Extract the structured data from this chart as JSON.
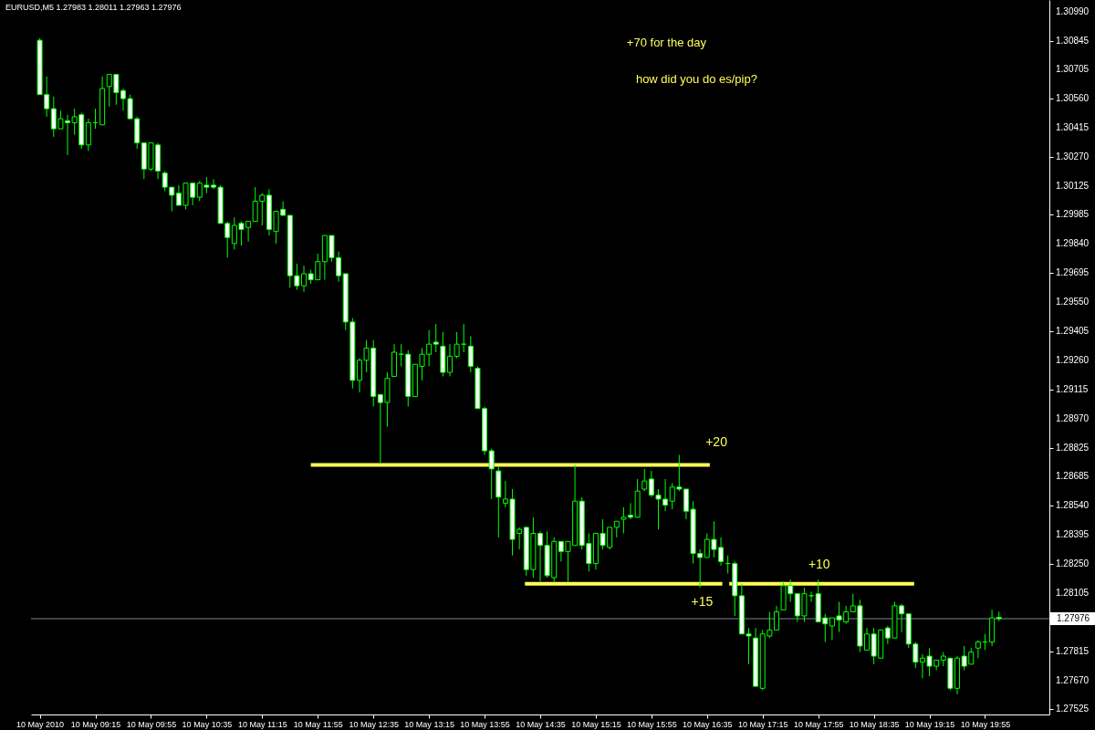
{
  "chart_data": {
    "type": "candlestick",
    "title": "EURUSD,M5  1.27983 1.28011 1.27963 1.27976",
    "color": "#00ff00",
    "x": [
      "2010-05-10T08:35",
      "2010-05-10T08:40",
      "2010-05-10T08:45",
      "2010-05-10T08:50",
      "2010-05-10T08:55",
      "2010-05-10T09:00",
      "2010-05-10T09:05",
      "2010-05-10T09:10",
      "2010-05-10T09:15",
      "2010-05-10T09:20",
      "2010-05-10T09:25",
      "2010-05-10T09:30",
      "2010-05-10T09:35",
      "2010-05-10T09:40",
      "2010-05-10T09:45",
      "2010-05-10T09:50",
      "2010-05-10T09:55",
      "2010-05-10T10:00",
      "2010-05-10T10:05",
      "2010-05-10T10:10",
      "2010-05-10T10:15",
      "2010-05-10T10:20",
      "2010-05-10T10:25",
      "2010-05-10T10:30",
      "2010-05-10T10:35",
      "2010-05-10T10:40",
      "2010-05-10T10:45",
      "2010-05-10T10:50",
      "2010-05-10T10:55",
      "2010-05-10T11:00",
      "2010-05-10T11:05",
      "2010-05-10T11:10",
      "2010-05-10T11:15",
      "2010-05-10T11:20",
      "2010-05-10T11:25",
      "2010-05-10T11:30",
      "2010-05-10T11:35",
      "2010-05-10T11:40",
      "2010-05-10T11:45",
      "2010-05-10T11:50",
      "2010-05-10T11:55",
      "2010-05-10T12:00",
      "2010-05-10T12:05",
      "2010-05-10T12:10",
      "2010-05-10T12:15",
      "2010-05-10T12:20",
      "2010-05-10T12:25",
      "2010-05-10T12:30",
      "2010-05-10T12:35",
      "2010-05-10T12:40",
      "2010-05-10T12:45",
      "2010-05-10T12:50",
      "2010-05-10T12:55",
      "2010-05-10T13:00",
      "2010-05-10T13:05",
      "2010-05-10T13:10",
      "2010-05-10T13:15",
      "2010-05-10T13:20",
      "2010-05-10T13:25",
      "2010-05-10T13:30",
      "2010-05-10T13:35",
      "2010-05-10T13:40",
      "2010-05-10T13:45",
      "2010-05-10T13:50",
      "2010-05-10T13:55",
      "2010-05-10T14:00",
      "2010-05-10T14:05",
      "2010-05-10T14:10",
      "2010-05-10T14:15",
      "2010-05-10T14:20",
      "2010-05-10T14:25",
      "2010-05-10T14:30",
      "2010-05-10T14:35",
      "2010-05-10T14:40",
      "2010-05-10T14:45",
      "2010-05-10T14:50",
      "2010-05-10T14:55",
      "2010-05-10T15:00",
      "2010-05-10T15:05",
      "2010-05-10T15:10",
      "2010-05-10T15:15",
      "2010-05-10T15:20",
      "2010-05-10T15:25",
      "2010-05-10T15:30",
      "2010-05-10T15:35",
      "2010-05-10T15:40",
      "2010-05-10T15:45",
      "2010-05-10T15:50",
      "2010-05-10T15:55",
      "2010-05-10T16:00",
      "2010-05-10T16:05",
      "2010-05-10T16:10",
      "2010-05-10T16:15",
      "2010-05-10T16:20",
      "2010-05-10T16:25",
      "2010-05-10T16:30",
      "2010-05-10T16:35",
      "2010-05-10T16:40",
      "2010-05-10T16:45",
      "2010-05-10T16:50",
      "2010-05-10T16:55",
      "2010-05-10T17:00",
      "2010-05-10T17:05",
      "2010-05-10T17:10",
      "2010-05-10T17:15",
      "2010-05-10T17:20",
      "2010-05-10T17:25",
      "2010-05-10T17:30",
      "2010-05-10T17:35",
      "2010-05-10T17:40",
      "2010-05-10T17:45",
      "2010-05-10T17:50",
      "2010-05-10T17:55",
      "2010-05-10T18:00",
      "2010-05-10T18:05",
      "2010-05-10T18:10",
      "2010-05-10T18:15",
      "2010-05-10T18:20",
      "2010-05-10T18:25",
      "2010-05-10T18:30",
      "2010-05-10T18:35",
      "2010-05-10T18:40",
      "2010-05-10T18:45",
      "2010-05-10T18:50",
      "2010-05-10T18:55",
      "2010-05-10T19:00",
      "2010-05-10T19:05",
      "2010-05-10T19:10",
      "2010-05-10T19:15",
      "2010-05-10T19:20",
      "2010-05-10T19:25",
      "2010-05-10T19:30",
      "2010-05-10T19:35",
      "2010-05-10T19:40",
      "2010-05-10T19:45",
      "2010-05-10T19:50",
      "2010-05-10T19:55",
      "2010-05-10T20:00",
      "2010-05-10T20:05"
    ],
    "ohlc": [
      [
        1.3085,
        1.3086,
        1.3058,
        1.3058
      ],
      [
        1.3058,
        1.3067,
        1.3047,
        1.3051
      ],
      [
        1.3051,
        1.3057,
        1.3037,
        1.3041
      ],
      [
        1.3041,
        1.305,
        1.3041,
        1.3046
      ],
      [
        1.3045,
        1.3048,
        1.3028,
        1.3044
      ],
      [
        1.3044,
        1.3051,
        1.3038,
        1.3047
      ],
      [
        1.3048,
        1.3049,
        1.3031,
        1.3033
      ],
      [
        1.3033,
        1.3046,
        1.303,
        1.3044
      ],
      [
        1.3044,
        1.3051,
        1.3041,
        1.3044
      ],
      [
        1.3043,
        1.3067,
        1.3043,
        1.3061
      ],
      [
        1.3062,
        1.3068,
        1.3052,
        1.3068
      ],
      [
        1.3068,
        1.3068,
        1.3053,
        1.3059
      ],
      [
        1.306,
        1.3061,
        1.305,
        1.3056
      ],
      [
        1.3056,
        1.3058,
        1.3046,
        1.3046
      ],
      [
        1.3046,
        1.3047,
        1.3031,
        1.3034
      ],
      [
        1.3034,
        1.3034,
        1.3016,
        1.3021
      ],
      [
        1.3021,
        1.3034,
        1.302,
        1.3034
      ],
      [
        1.3033,
        1.3034,
        1.3016,
        1.302
      ],
      [
        1.3019,
        1.302,
        1.301,
        1.3012
      ],
      [
        1.3012,
        1.3012,
        1.3,
        1.3008
      ],
      [
        1.3009,
        1.3013,
        1.3003,
        1.3003
      ],
      [
        1.3003,
        1.3014,
        1.3001,
        1.3014
      ],
      [
        1.3014,
        1.3014,
        1.3003,
        1.3007
      ],
      [
        1.3007,
        1.3015,
        1.3005,
        1.3014
      ],
      [
        1.3013,
        1.3017,
        1.3009,
        1.3012
      ],
      [
        1.3013,
        1.3016,
        1.3011,
        1.3012
      ],
      [
        1.3012,
        1.3013,
        1.2994,
        1.2994
      ],
      [
        1.2994,
        1.2995,
        1.2977,
        1.2987
      ],
      [
        1.2984,
        1.2997,
        1.2981,
        1.2993
      ],
      [
        1.2994,
        1.2995,
        1.2983,
        1.2991
      ],
      [
        1.2992,
        1.2995,
        1.2985,
        1.2995
      ],
      [
        1.2995,
        1.3012,
        1.2995,
        1.3005
      ],
      [
        1.3005,
        1.3009,
        1.2993,
        1.3008
      ],
      [
        1.3008,
        1.3011,
        1.2988,
        1.2991
      ],
      [
        1.299,
        1.3,
        1.2984,
        1.3
      ],
      [
        1.3001,
        1.3005,
        1.2998,
        1.2998
      ],
      [
        1.2998,
        1.2998,
        1.2962,
        1.2968
      ],
      [
        1.2968,
        1.2974,
        1.2961,
        1.2963
      ],
      [
        1.2963,
        1.2973,
        1.296,
        1.2969
      ],
      [
        1.2969,
        1.2971,
        1.2964,
        1.2966
      ],
      [
        1.2966,
        1.2979,
        1.2966,
        1.2975
      ],
      [
        1.2975,
        1.2988,
        1.2966,
        1.2988
      ],
      [
        1.2988,
        1.2988,
        1.2975,
        1.2977
      ],
      [
        1.2977,
        1.298,
        1.2965,
        1.2968
      ],
      [
        1.2969,
        1.2969,
        1.2941,
        1.2945
      ],
      [
        1.2945,
        1.2947,
        1.2912,
        1.2916
      ],
      [
        1.2916,
        1.2927,
        1.291,
        1.2926
      ],
      [
        1.2926,
        1.2936,
        1.292,
        1.2932
      ],
      [
        1.2932,
        1.2936,
        1.2903,
        1.2908
      ],
      [
        1.2909,
        1.2909,
        1.2875,
        1.2905
      ],
      [
        1.2905,
        1.292,
        1.2893,
        1.2917
      ],
      [
        1.2918,
        1.2934,
        1.2918,
        1.293
      ],
      [
        1.2929,
        1.2934,
        1.2923,
        1.2929
      ],
      [
        1.2929,
        1.2931,
        1.2903,
        1.2908
      ],
      [
        1.2908,
        1.2924,
        1.2908,
        1.2924
      ],
      [
        1.2923,
        1.2932,
        1.2916,
        1.2929
      ],
      [
        1.2929,
        1.2941,
        1.2923,
        1.2934
      ],
      [
        1.2935,
        1.2944,
        1.293,
        1.2934
      ],
      [
        1.2933,
        1.294,
        1.2918,
        1.292
      ],
      [
        1.292,
        1.2934,
        1.2918,
        1.2928
      ],
      [
        1.2928,
        1.294,
        1.2927,
        1.2934
      ],
      [
        1.2934,
        1.2944,
        1.293,
        1.2934
      ],
      [
        1.2933,
        1.2938,
        1.292,
        1.2923
      ],
      [
        1.2922,
        1.2923,
        1.2902,
        1.2902
      ],
      [
        1.2902,
        1.2903,
        1.2879,
        1.2881
      ],
      [
        1.2881,
        1.2882,
        1.2857,
        1.2872
      ],
      [
        1.2871,
        1.2873,
        1.2838,
        1.2858
      ],
      [
        1.2855,
        1.2866,
        1.2853,
        1.2857
      ],
      [
        1.2857,
        1.2862,
        1.2829,
        1.2837
      ],
      [
        1.284,
        1.2843,
        1.2832,
        1.2842
      ],
      [
        1.2843,
        1.2843,
        1.2819,
        1.2822
      ],
      [
        1.2822,
        1.2848,
        1.2818,
        1.284
      ],
      [
        1.284,
        1.2841,
        1.2816,
        1.2834
      ],
      [
        1.2834,
        1.2841,
        1.2818,
        1.2819
      ],
      [
        1.2818,
        1.2838,
        1.2816,
        1.2836
      ],
      [
        1.2836,
        1.2836,
        1.2826,
        1.2831
      ],
      [
        1.2831,
        1.2836,
        1.2816,
        1.2836
      ],
      [
        1.2834,
        1.2874,
        1.2834,
        1.2856
      ],
      [
        1.2856,
        1.2858,
        1.2832,
        1.2834
      ],
      [
        1.2835,
        1.284,
        1.2821,
        1.2825
      ],
      [
        1.2825,
        1.284,
        1.2822,
        1.284
      ],
      [
        1.284,
        1.2847,
        1.2832,
        1.2834
      ],
      [
        1.2833,
        1.2843,
        1.2832,
        1.2843
      ],
      [
        1.2843,
        1.2846,
        1.2838,
        1.2846
      ],
      [
        1.2847,
        1.2853,
        1.284,
        1.2848
      ],
      [
        1.2849,
        1.2855,
        1.2847,
        1.2848
      ],
      [
        1.2848,
        1.2867,
        1.2848,
        1.2861
      ],
      [
        1.2862,
        1.2872,
        1.2861,
        1.2866
      ],
      [
        1.2867,
        1.2871,
        1.2858,
        1.2859
      ],
      [
        1.2859,
        1.2862,
        1.2842,
        1.2857
      ],
      [
        1.2857,
        1.2867,
        1.2851,
        1.2854
      ],
      [
        1.2856,
        1.2865,
        1.2852,
        1.2863
      ],
      [
        1.2863,
        1.2879,
        1.2861,
        1.2862
      ],
      [
        1.2862,
        1.2862,
        1.2847,
        1.2851
      ],
      [
        1.2852,
        1.2856,
        1.2825,
        1.283
      ],
      [
        1.283,
        1.2832,
        1.2813,
        1.2828
      ],
      [
        1.2828,
        1.284,
        1.2828,
        1.2837
      ],
      [
        1.2837,
        1.2846,
        1.2828,
        1.2832
      ],
      [
        1.2833,
        1.2838,
        1.2824,
        1.2826
      ],
      [
        1.2825,
        1.2829,
        1.282,
        1.2825
      ],
      [
        1.2825,
        1.2826,
        1.2799,
        1.2809
      ],
      [
        1.2809,
        1.2815,
        1.279,
        1.279
      ],
      [
        1.279,
        1.2793,
        1.2775,
        1.2789
      ],
      [
        1.2788,
        1.2793,
        1.2764,
        1.2764
      ],
      [
        1.2763,
        1.2792,
        1.2762,
        1.279
      ],
      [
        1.2789,
        1.2801,
        1.2788,
        1.2792
      ],
      [
        1.2792,
        1.2804,
        1.2792,
        1.2801
      ],
      [
        1.2802,
        1.2816,
        1.2802,
        1.2814
      ],
      [
        1.2814,
        1.2817,
        1.2806,
        1.281
      ],
      [
        1.281,
        1.281,
        1.2796,
        1.2799
      ],
      [
        1.2799,
        1.2813,
        1.2796,
        1.281
      ],
      [
        1.2809,
        1.2811,
        1.2806,
        1.2809
      ],
      [
        1.281,
        1.2817,
        1.2796,
        1.2796
      ],
      [
        1.2798,
        1.28,
        1.2786,
        1.2795
      ],
      [
        1.2794,
        1.2798,
        1.2787,
        1.2798
      ],
      [
        1.2799,
        1.2806,
        1.2791,
        1.2797
      ],
      [
        1.2796,
        1.2804,
        1.2795,
        1.2801
      ],
      [
        1.2801,
        1.281,
        1.2801,
        1.2804
      ],
      [
        1.2804,
        1.2807,
        1.2781,
        1.2784
      ],
      [
        1.2782,
        1.2793,
        1.2782,
        1.279
      ],
      [
        1.279,
        1.2793,
        1.2775,
        1.2779
      ],
      [
        1.2778,
        1.2792,
        1.2778,
        1.2792
      ],
      [
        1.2793,
        1.2794,
        1.2785,
        1.2788
      ],
      [
        1.2788,
        1.2806,
        1.2788,
        1.2804
      ],
      [
        1.2804,
        1.2805,
        1.2791,
        1.28
      ],
      [
        1.28,
        1.28,
        1.2783,
        1.2785
      ],
      [
        1.2785,
        1.2786,
        1.2773,
        1.2776
      ],
      [
        1.2776,
        1.278,
        1.2768,
        1.2778
      ],
      [
        1.2779,
        1.2783,
        1.2769,
        1.2774
      ],
      [
        1.2774,
        1.2777,
        1.2772,
        1.2777
      ],
      [
        1.2777,
        1.2781,
        1.2774,
        1.2779
      ],
      [
        1.2778,
        1.2778,
        1.2762,
        1.2763
      ],
      [
        1.2763,
        1.2779,
        1.276,
        1.2778
      ],
      [
        1.2779,
        1.2784,
        1.2772,
        1.2774
      ],
      [
        1.2775,
        1.2783,
        1.2775,
        1.2781
      ],
      [
        1.2783,
        1.2787,
        1.2778,
        1.2786
      ],
      [
        1.2786,
        1.279,
        1.2782,
        1.2786
      ],
      [
        1.2786,
        1.2802,
        1.2784,
        1.2798
      ],
      [
        1.27983,
        1.28011,
        1.27963,
        1.27976
      ]
    ],
    "series": [
      {
        "type": "line",
        "color": "#ffff55",
        "x": [
          "2010-05-10T11:50",
          "2010-05-10T16:37"
        ],
        "values": [
          1.2874,
          1.2874
        ]
      },
      {
        "type": "line",
        "color": "#ffff55",
        "x": [
          "2010-05-10T14:24",
          "2010-05-10T16:46"
        ],
        "values": [
          1.2815,
          1.2815
        ]
      },
      {
        "type": "line",
        "color": "#ffff55",
        "x": [
          "2010-05-10T16:51",
          "2010-05-10T19:04"
        ],
        "values": [
          1.2815,
          1.2815
        ]
      }
    ],
    "ref_lines": [
      {
        "axis": "y",
        "value": 1.27976,
        "label": "1.27976",
        "color": "#778899"
      }
    ],
    "annotations": [
      "+70 for the day",
      "how did you do es/pip?",
      "+20",
      "+15",
      "+10"
    ],
    "xlim": [
      "2010-05-10T08:32",
      "2010-05-10T20:38"
    ],
    "xticks": [
      {
        "value": "2010-05-10T08:35",
        "label": "10 May 2010"
      },
      {
        "value": "2010-05-10T09:15",
        "label": "10 May 09:15"
      },
      {
        "value": "2010-05-10T09:55",
        "label": "10 May 09:55"
      },
      {
        "value": "2010-05-10T10:35",
        "label": "10 May 10:35"
      },
      {
        "value": "2010-05-10T11:15",
        "label": "10 May 11:15"
      },
      {
        "value": "2010-05-10T11:55",
        "label": "10 May 11:55"
      },
      {
        "value": "2010-05-10T12:35",
        "label": "10 May 12:35"
      },
      {
        "value": "2010-05-10T13:15",
        "label": "10 May 13:15"
      },
      {
        "value": "2010-05-10T13:55",
        "label": "10 May 13:55"
      },
      {
        "value": "2010-05-10T14:35",
        "label": "10 May 14:35"
      },
      {
        "value": "2010-05-10T15:15",
        "label": "10 May 15:15"
      },
      {
        "value": "2010-05-10T15:55",
        "label": "10 May 15:55"
      },
      {
        "value": "2010-05-10T16:35",
        "label": "10 May 16:35"
      },
      {
        "value": "2010-05-10T17:15",
        "label": "10 May 17:15"
      },
      {
        "value": "2010-05-10T17:55",
        "label": "10 May 17:55"
      },
      {
        "value": "2010-05-10T18:35",
        "label": "10 May 18:35"
      },
      {
        "value": "2010-05-10T19:15",
        "label": "10 May 19:15"
      },
      {
        "value": "2010-05-10T19:55",
        "label": "10 May 19:55"
      }
    ],
    "ylim": [
      1.275,
      1.3105
    ],
    "yticks": [
      {
        "value": 1.3099,
        "label": "1.30990"
      },
      1.30845,
      1.30705,
      {
        "value": 1.3056,
        "label": "1.30560"
      },
      1.30415,
      {
        "value": 1.3027,
        "label": "1.30270"
      },
      1.30125,
      1.29985,
      {
        "value": 1.2984,
        "label": "1.29840"
      },
      1.29695,
      {
        "value": 1.2955,
        "label": "1.29550"
      },
      1.29405,
      {
        "value": 1.2926,
        "label": "1.29260"
      },
      1.29115,
      {
        "value": 1.2897,
        "label": "1.28970"
      },
      1.28825,
      1.28685,
      {
        "value": 1.2854,
        "label": "1.28540"
      },
      1.28395,
      {
        "value": 1.2825,
        "label": "1.28250"
      },
      1.28105,
      1.27815,
      {
        "value": 1.2767,
        "label": "1.27670"
      },
      1.27525
    ]
  }
}
